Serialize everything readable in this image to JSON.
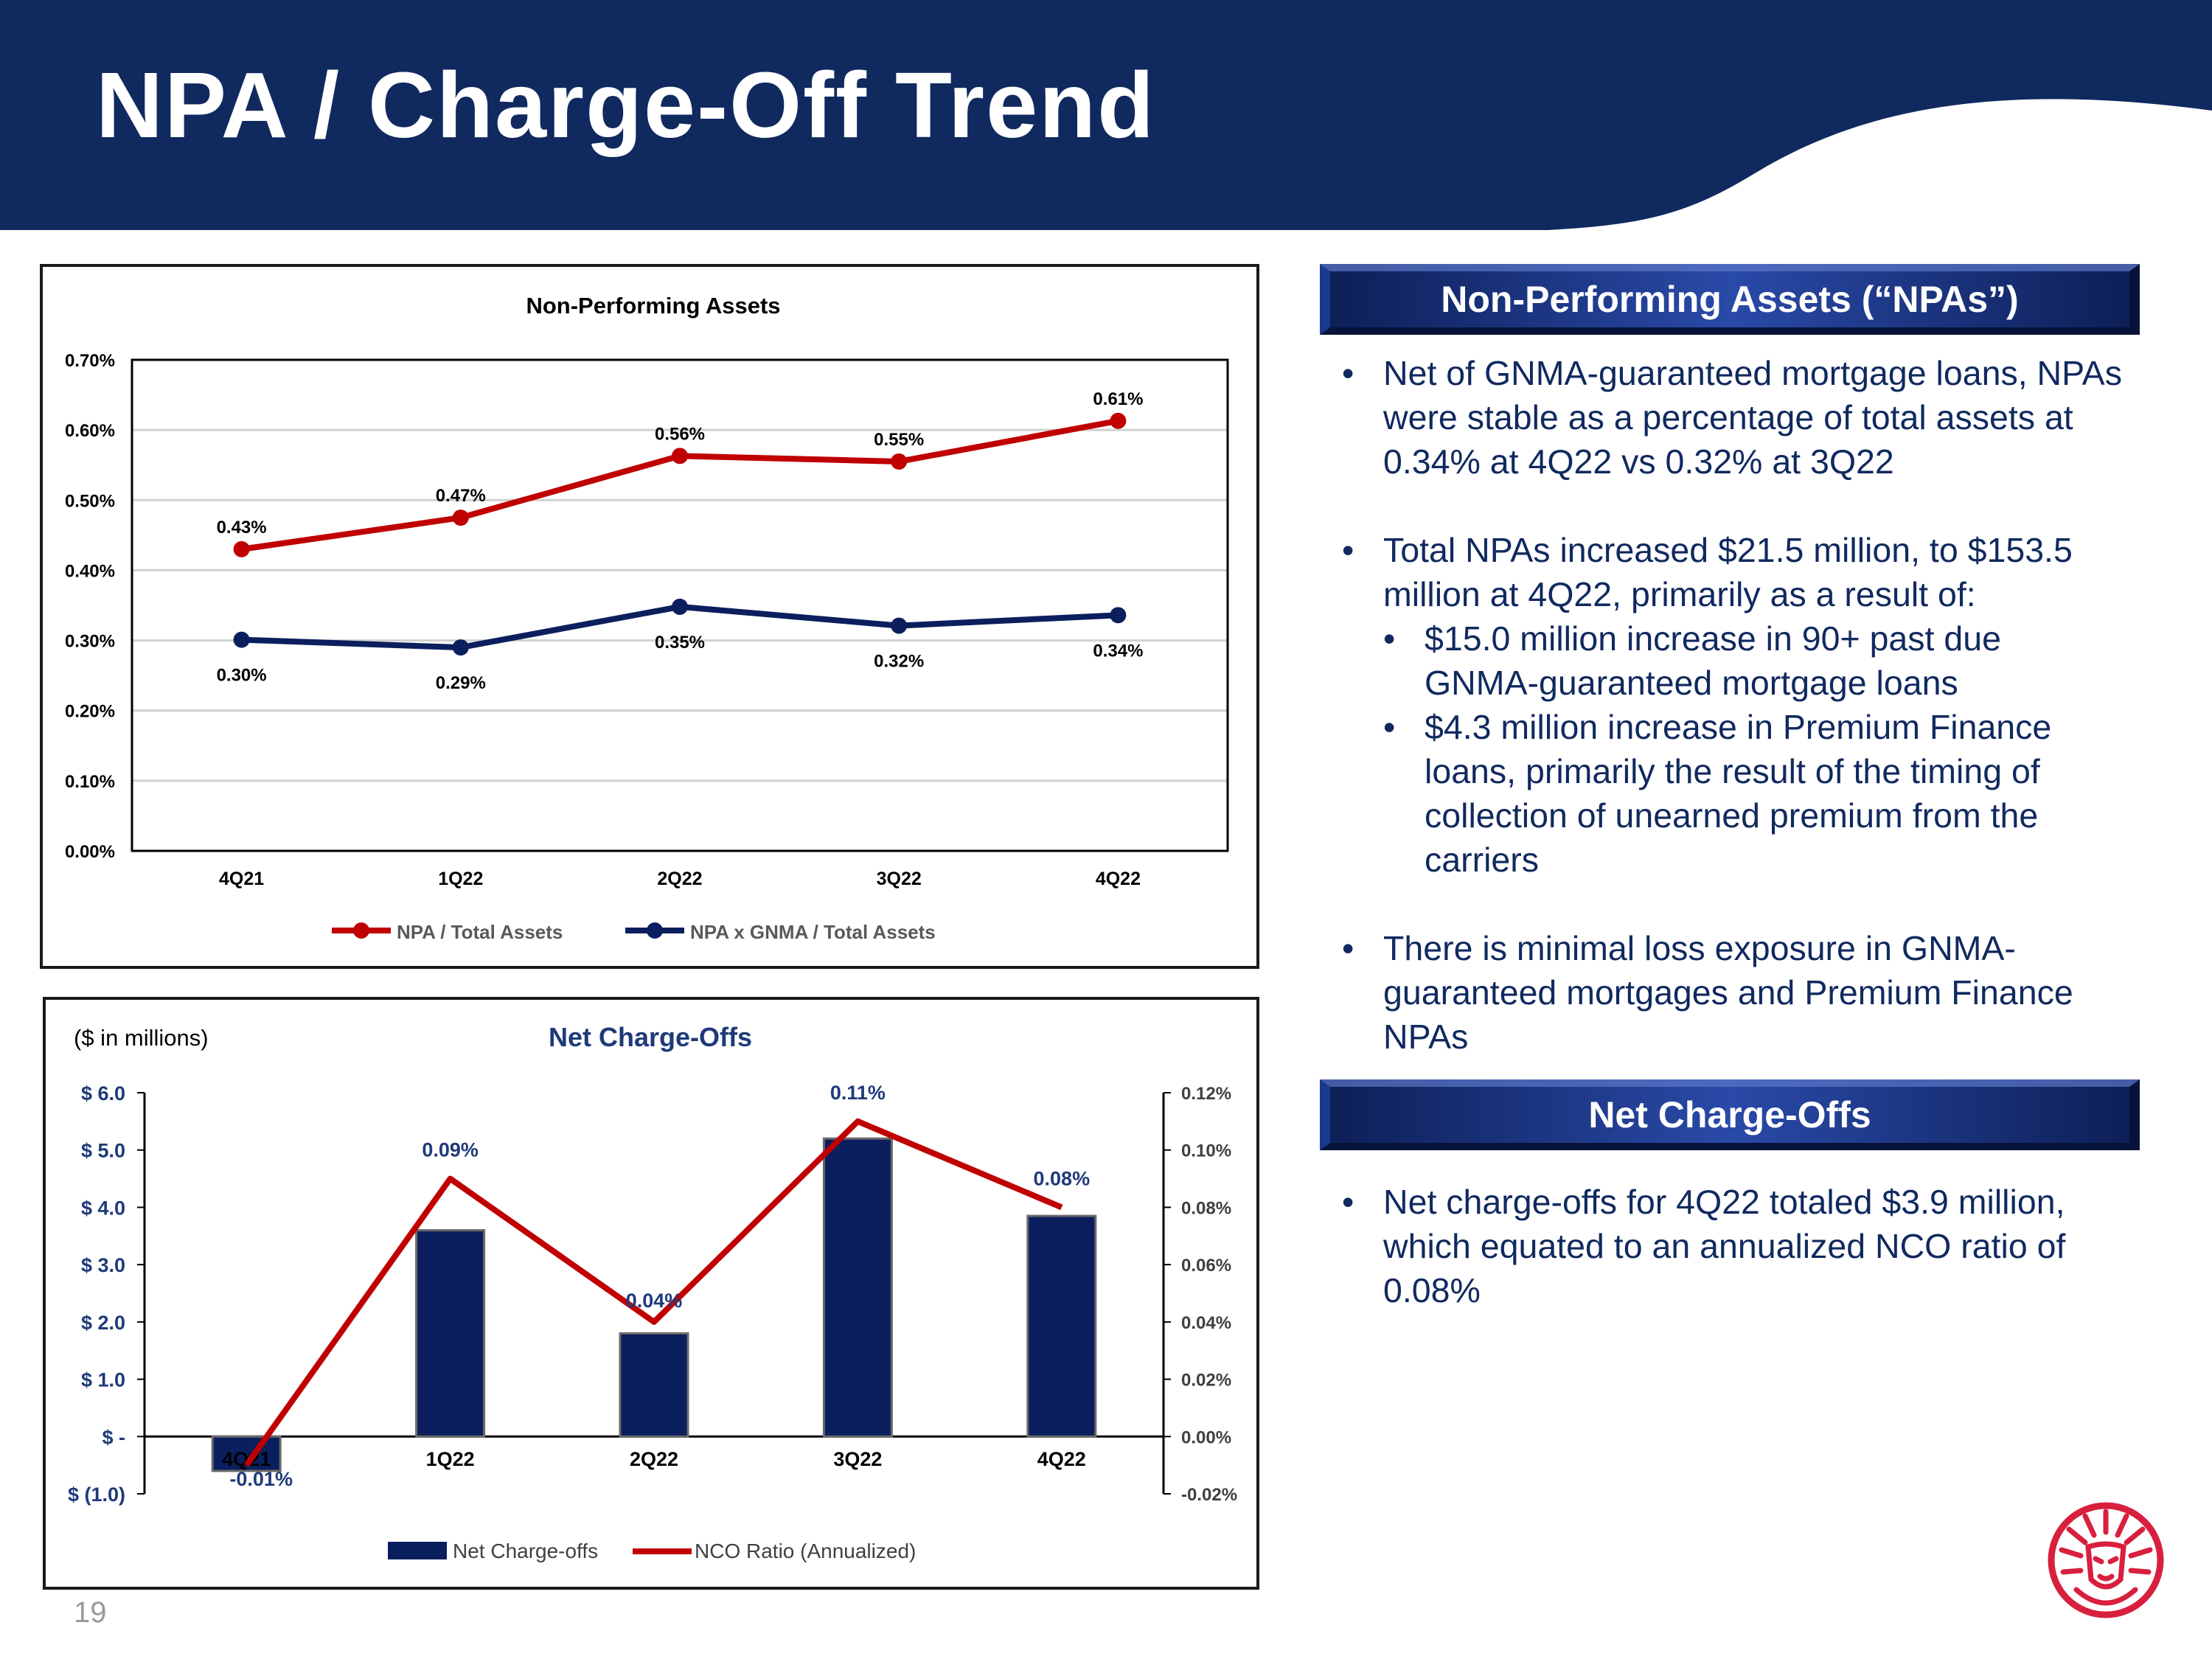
{
  "page": {
    "title": "NPA / Charge-Off Trend",
    "page_number": "19"
  },
  "colors": {
    "navy": "#10295f",
    "red": "#c00000",
    "bar": "#0b1f5e",
    "logo_red": "#d8203e"
  },
  "npa_section": {
    "header": "Non-Performing Assets (“NPAs”)",
    "b1": "Net of GNMA-guaranteed mortgage loans, NPAs were stable as a percentage of total assets at 0.34% at 4Q22 vs 0.32% at 3Q22",
    "b2": "Total NPAs increased $21.5 million, to $153.5 million at 4Q22, primarily as a result of:",
    "b2a": "$15.0 million increase in 90+ past due GNMA-guaranteed mortgage loans",
    "b2b": "$4.3 million increase in Premium Finance loans, primarily the result of the timing of collection of unearned premium from the carriers",
    "b3": "There is minimal loss exposure in GNMA-guaranteed mortgages and Premium Finance NPAs"
  },
  "nco_section": {
    "header": "Net Charge-Offs",
    "b1": "Net charge-offs for 4Q22 totaled $3.9 million, which equated to an annualized NCO ratio of 0.08%"
  },
  "chart_data": [
    {
      "type": "line",
      "title": "Non-Performing Assets",
      "categories": [
        "4Q21",
        "1Q22",
        "2Q22",
        "3Q22",
        "4Q22"
      ],
      "yticks": [
        "0.00%",
        "0.10%",
        "0.20%",
        "0.30%",
        "0.40%",
        "0.50%",
        "0.60%",
        "0.70%"
      ],
      "ylim": [
        0,
        0.7
      ],
      "series": [
        {
          "name": "NPA / Total Assets",
          "values": [
            0.43,
            0.475,
            0.563,
            0.555,
            0.613
          ],
          "labels": [
            "0.43%",
            "0.47%",
            "0.56%",
            "0.55%",
            "0.61%"
          ],
          "color": "#c00000"
        },
        {
          "name": "NPA x GNMA / Total Assets",
          "values": [
            0.301,
            0.29,
            0.348,
            0.321,
            0.336
          ],
          "labels": [
            "0.30%",
            "0.29%",
            "0.35%",
            "0.32%",
            "0.34%"
          ],
          "color": "#0b1f5e"
        }
      ],
      "legend": "bottom"
    },
    {
      "type": "bar",
      "title": "Net Charge-Offs",
      "unit_note": "($ in millions)",
      "categories": [
        "4Q21",
        "1Q22",
        "2Q22",
        "3Q22",
        "4Q22"
      ],
      "bar_series": {
        "name": "Net Charge-offs",
        "values": [
          -0.6,
          3.6,
          1.8,
          5.2,
          3.85
        ],
        "color": "#0b1f5e"
      },
      "line_series": {
        "name": "NCO Ratio (Annualized)",
        "values": [
          -0.01,
          0.09,
          0.04,
          0.11,
          0.08
        ],
        "labels": [
          "-0.01%",
          "0.09%",
          "0.04%",
          "0.11%",
          "0.08%"
        ],
        "color": "#c00000"
      },
      "yleft_ticks": [
        "$ (1.0)",
        "$ -",
        "$ 1.0",
        "$ 2.0",
        "$ 3.0",
        "$ 4.0",
        "$ 5.0",
        "$ 6.0"
      ],
      "yleft_lim": [
        -1,
        6
      ],
      "yright_ticks": [
        "-0.02%",
        "0.00%",
        "0.02%",
        "0.04%",
        "0.06%",
        "0.08%",
        "0.10%",
        "0.12%"
      ],
      "yright_lim": [
        -0.02,
        0.12
      ],
      "legend": "bottom"
    }
  ]
}
